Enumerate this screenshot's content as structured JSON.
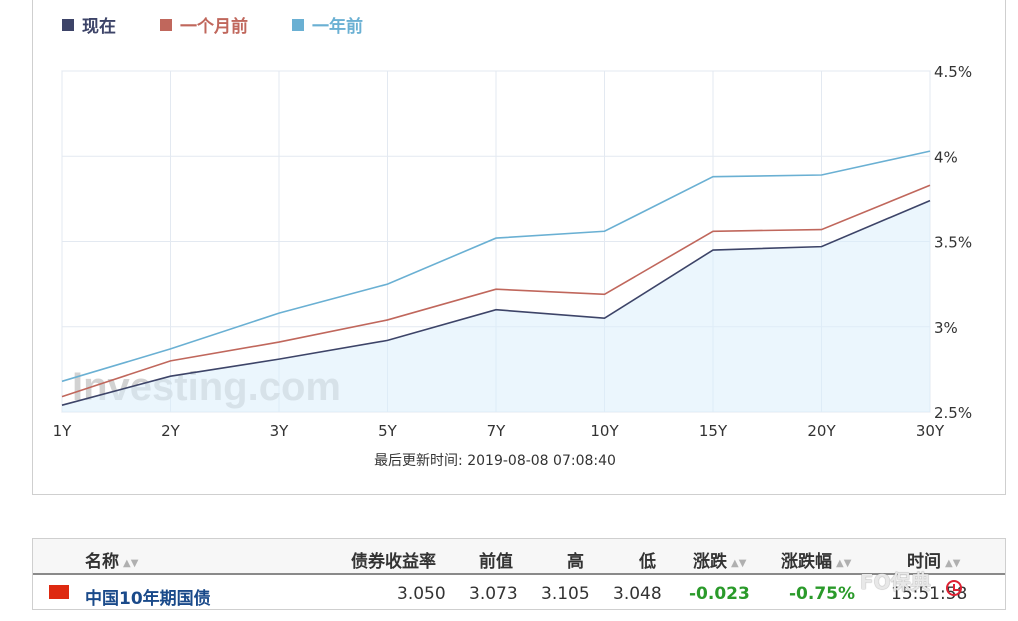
{
  "chart_data": {
    "type": "line",
    "categories": [
      "1Y",
      "2Y",
      "3Y",
      "5Y",
      "7Y",
      "10Y",
      "15Y",
      "20Y",
      "30Y"
    ],
    "series": [
      {
        "name": "现在",
        "color": "#3d4468",
        "values": [
          2.54,
          2.71,
          2.81,
          2.92,
          3.1,
          3.05,
          3.45,
          3.47,
          3.74
        ]
      },
      {
        "name": "一个月前",
        "color": "#c0675c",
        "values": [
          2.59,
          2.8,
          2.91,
          3.04,
          3.22,
          3.19,
          3.56,
          3.57,
          3.83
        ]
      },
      {
        "name": "一年前",
        "color": "#6ab0d3",
        "values": [
          2.68,
          2.87,
          3.08,
          3.25,
          3.52,
          3.56,
          3.88,
          3.89,
          4.03
        ]
      }
    ],
    "yticks": [
      "4.5%",
      "4%",
      "3.5%",
      "3%",
      "2.5%"
    ],
    "ylim": [
      2.5,
      4.5
    ],
    "legend_position": "top-left",
    "grid": true,
    "area_fill_series": "现在",
    "watermark": "Investing.com"
  },
  "footer": {
    "updated_text": "最后更新时间: 2019-08-08 07:08:40"
  },
  "table": {
    "headers": {
      "name": "名称",
      "yield": "债券收益率",
      "prev": "前值",
      "high": "高",
      "low": "低",
      "change": "涨跌",
      "change_pct": "涨跌幅",
      "time": "时间"
    },
    "row": {
      "name": "中国10年期国债",
      "yield": "3.050",
      "prev": "3.073",
      "high": "3.105",
      "low": "3.048",
      "change": "-0.023",
      "change_pct": "-0.75%",
      "time": "15:51:58"
    }
  },
  "overlay_watermark": "FO保典"
}
